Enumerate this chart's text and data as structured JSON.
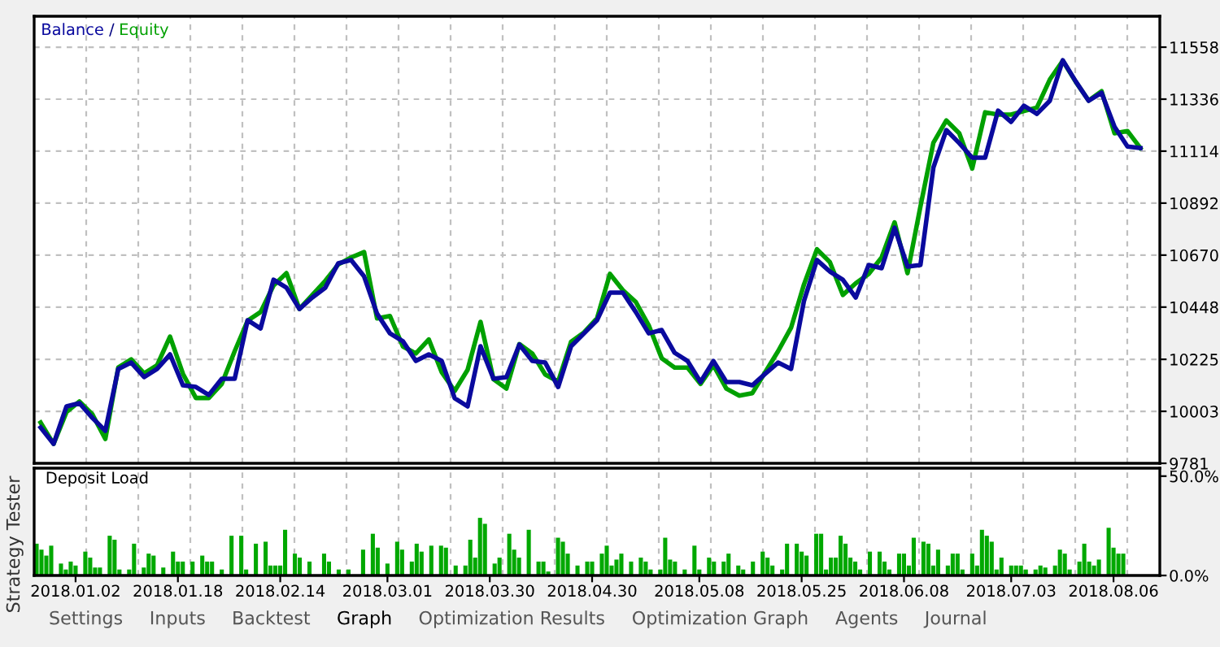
{
  "chart_data": [
    {
      "type": "line",
      "legend": "top left",
      "grid": true,
      "tick_labels": "y",
      "marker": "none",
      "line_style": "solid",
      "ylim": [
        9781,
        11690
      ],
      "yticks": [
        9781,
        10003,
        10225,
        10448,
        10670,
        10892,
        11114,
        11336,
        11558
      ],
      "annotations": [
        "/"
      ],
      "categories": [
        null,
        null,
        null,
        null,
        null,
        null,
        null,
        null,
        null,
        null,
        null,
        null,
        null,
        null,
        null,
        null,
        null,
        null,
        null,
        null,
        null,
        null,
        null,
        null,
        null,
        null,
        null,
        null,
        null,
        null,
        null,
        null,
        null,
        null,
        null,
        null,
        null,
        null,
        null,
        null,
        null,
        null,
        null,
        null,
        null,
        null,
        null,
        null,
        null,
        null,
        null,
        null,
        null,
        null,
        null,
        null,
        null,
        null,
        null,
        null,
        null,
        null,
        null,
        null,
        null,
        null,
        null,
        null,
        null,
        null,
        null,
        null,
        null,
        null,
        null,
        null,
        null,
        null,
        null,
        null,
        null,
        null,
        null,
        null,
        null,
        null,
        null
      ],
      "series": [
        {
          "name": "Equity",
          "color": "#00a000",
          "values": [
            9955,
            9864,
            10000,
            10045,
            9990,
            9885,
            10190,
            10225,
            10165,
            10200,
            10322,
            10163,
            10060,
            10060,
            10120,
            10260,
            10390,
            10427,
            10540,
            10593,
            10440,
            10500,
            10560,
            10630,
            10660,
            10683,
            10400,
            10410,
            10280,
            10250,
            10310,
            10170,
            10090,
            10180,
            10385,
            10140,
            10100,
            10290,
            10250,
            10160,
            10130,
            10300,
            10340,
            10400,
            10590,
            10520,
            10470,
            10370,
            10230,
            10190,
            10190,
            10120,
            10200,
            10100,
            10070,
            10080,
            10170,
            10260,
            10360,
            10545,
            10695,
            10640,
            10500,
            10550,
            10590,
            10660,
            10810,
            10593,
            10878,
            11150,
            11245,
            11190,
            11040,
            11280,
            11270,
            11270,
            11285,
            11300,
            11420,
            11500,
            11410,
            11330,
            11370,
            11190,
            11200,
            11127,
            null
          ]
        },
        {
          "name": "Balance",
          "color": "#0a0a9e",
          "values": [
            9934,
            9864,
            10024,
            10038,
            9975,
            9920,
            10184,
            10211,
            10149,
            10184,
            10246,
            10114,
            10107,
            10073,
            10142,
            10142,
            10392,
            10357,
            10565,
            10531,
            10440,
            10489,
            10531,
            10635,
            10649,
            10579,
            10420,
            10336,
            10302,
            10218,
            10246,
            10218,
            10059,
            10024,
            10281,
            10142,
            10149,
            10288,
            10218,
            10211,
            10107,
            10281,
            10336,
            10392,
            10510,
            10510,
            10427,
            10336,
            10350,
            10253,
            10218,
            10128,
            10218,
            10128,
            10128,
            10114,
            10163,
            10211,
            10184,
            10475,
            10649,
            10600,
            10565,
            10489,
            10628,
            10614,
            10787,
            10621,
            10628,
            11044,
            11204,
            11148,
            11086,
            11086,
            11287,
            11239,
            11308,
            11273,
            11329,
            11502,
            11412,
            11329,
            11363,
            11218,
            11134,
            11127,
            null
          ]
        }
      ]
    },
    {
      "type": "bar",
      "title": "Deposit Load",
      "grid": "x",
      "color": "#00a800",
      "ylim": [
        0,
        54
      ],
      "yticks": [
        {
          "value": 0,
          "label": "0.0%"
        },
        {
          "value": 50,
          "label": "50.0%"
        }
      ],
      "categories": [
        null,
        null,
        null,
        null,
        null,
        null,
        null,
        null,
        "2018.01.02",
        null,
        null,
        null,
        null,
        null,
        null,
        null,
        null,
        null,
        null,
        null,
        null,
        null,
        null,
        null,
        null,
        null,
        null,
        null,
        null,
        "2018.01.18",
        null,
        null,
        null,
        null,
        null,
        null,
        null,
        null,
        null,
        null,
        null,
        null,
        null,
        null,
        null,
        null,
        null,
        null,
        null,
        null,
        "2018.02.14",
        null,
        null,
        null,
        null,
        null,
        null,
        null,
        null,
        null,
        null,
        null,
        null,
        null,
        null,
        null,
        null,
        null,
        null,
        null,
        null,
        null,
        "2018.03.01",
        null,
        null,
        null,
        null,
        null,
        null,
        null,
        null,
        null,
        null,
        null,
        null,
        null,
        null,
        null,
        null,
        null,
        null,
        null,
        null,
        "2018.03.30",
        null,
        null,
        null,
        null,
        null,
        null,
        null,
        null,
        null,
        null,
        null,
        null,
        null,
        null,
        null,
        null,
        null,
        null,
        null,
        null,
        "2018.04.30",
        null,
        null,
        null,
        null,
        null,
        null,
        null,
        null,
        null,
        null,
        null,
        null,
        null,
        null,
        null,
        null,
        null,
        null,
        null,
        null,
        null,
        "2018.05.08",
        null,
        null,
        null,
        null,
        null,
        null,
        null,
        null,
        null,
        null,
        null,
        null,
        null,
        null,
        null,
        null,
        null,
        null,
        null,
        null,
        "2018.05.25",
        null,
        null,
        null,
        null,
        null,
        null,
        null,
        null,
        null,
        null,
        null,
        null,
        null,
        null,
        null,
        null,
        null,
        null,
        null,
        null,
        "2018.06.08",
        null,
        null,
        null,
        null,
        null,
        null,
        null,
        null,
        null,
        null,
        null,
        null,
        null,
        null,
        null,
        null,
        null,
        null,
        null,
        null,
        null,
        "2018.07.03",
        null,
        null,
        null,
        null,
        null,
        null,
        null,
        null,
        null,
        null,
        null,
        null,
        null,
        null,
        null,
        null,
        null,
        null,
        null,
        null,
        "2018.08.06",
        null,
        null,
        null,
        null,
        null,
        null,
        null,
        null,
        null
      ],
      "values": [
        16,
        13,
        10,
        15,
        null,
        6,
        3,
        7,
        5,
        null,
        12,
        9,
        4,
        4,
        null,
        20,
        18,
        3,
        null,
        3,
        16,
        null,
        4,
        11,
        10,
        null,
        4,
        null,
        12,
        7,
        7,
        null,
        7,
        null,
        10,
        7,
        7,
        null,
        3,
        null,
        20,
        null,
        20,
        3,
        null,
        16,
        null,
        17,
        5,
        5,
        5,
        23,
        null,
        11,
        9,
        null,
        7,
        null,
        null,
        11,
        7,
        null,
        3,
        null,
        3,
        null,
        null,
        13,
        null,
        21,
        14,
        null,
        6,
        null,
        17,
        13,
        null,
        7,
        16,
        12,
        null,
        15,
        null,
        15,
        14,
        null,
        5,
        null,
        5,
        18,
        9,
        29,
        26,
        null,
        6,
        9,
        null,
        21,
        13,
        9,
        null,
        23,
        null,
        7,
        7,
        2,
        null,
        19,
        17,
        11,
        null,
        5,
        null,
        7,
        7,
        null,
        11,
        15,
        5,
        8,
        11,
        null,
        7,
        null,
        9,
        7,
        3,
        null,
        3,
        19,
        8,
        7,
        null,
        3,
        null,
        15,
        3,
        null,
        9,
        7,
        null,
        7,
        11,
        null,
        5,
        3,
        null,
        7,
        null,
        12,
        9,
        5,
        null,
        3,
        16,
        null,
        16,
        12,
        10,
        null,
        21,
        21,
        3,
        9,
        9,
        20,
        16,
        9,
        7,
        3,
        null,
        12,
        null,
        12,
        7,
        3,
        null,
        11,
        11,
        5,
        19,
        null,
        17,
        16,
        5,
        13,
        null,
        5,
        11,
        11,
        3,
        null,
        11,
        5,
        23,
        20,
        17,
        3,
        9,
        null,
        5,
        5,
        5,
        3,
        null,
        3,
        5,
        4,
        null,
        5,
        13,
        11,
        3,
        null,
        7,
        16,
        7,
        5,
        8,
        null,
        24,
        14,
        11,
        11,
        null,
        null,
        null,
        null,
        null,
        null,
        null
      ],
      "annotations": [
        "Strategy Tester",
        "Settings",
        "Inputs",
        "Backtest",
        "Graph",
        "Optimization Results",
        "Optimization Graph",
        "Agents",
        "Journal"
      ]
    }
  ]
}
